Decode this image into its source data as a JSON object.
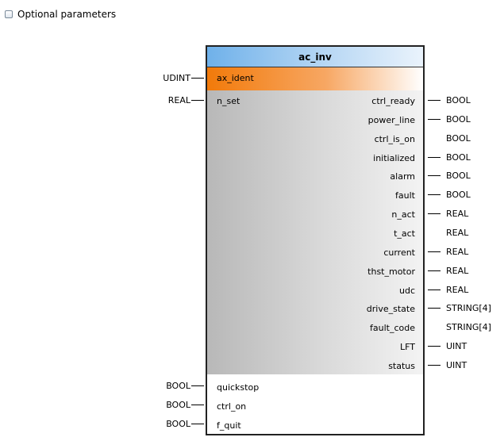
{
  "optional_label": "Optional parameters",
  "block": {
    "title": "ac_inv",
    "ax_ident": "ax_ident",
    "n_set": "n_set",
    "quickstop": "quickstop",
    "ctrl_on": "ctrl_on",
    "f_quit": "f_quit"
  },
  "types": {
    "ax_ident": "UDINT",
    "n_set": "REAL",
    "quickstop": "BOOL",
    "ctrl_on": "BOOL",
    "f_quit": "BOOL"
  },
  "outputs": [
    {
      "name": "ctrl_ready",
      "type": "BOOL"
    },
    {
      "name": "power_line",
      "type": "BOOL"
    },
    {
      "name": "ctrl_is_on",
      "type": "BOOL"
    },
    {
      "name": "initialized",
      "type": "BOOL"
    },
    {
      "name": "alarm",
      "type": "BOOL"
    },
    {
      "name": "fault",
      "type": "BOOL"
    },
    {
      "name": "n_act",
      "type": "REAL"
    },
    {
      "name": "t_act",
      "type": "REAL"
    },
    {
      "name": "current",
      "type": "REAL"
    },
    {
      "name": "thst_motor",
      "type": "REAL"
    },
    {
      "name": "udc",
      "type": "REAL"
    },
    {
      "name": "drive_state",
      "type": "STRING[4]"
    },
    {
      "name": "fault_code",
      "type": "STRING[4]"
    },
    {
      "name": "LFT",
      "type": "UINT"
    },
    {
      "name": "status",
      "type": "UINT"
    }
  ],
  "colors": {
    "title_bar": "#6fb1ea",
    "ax_ident_bar": "#f27a0a",
    "body_grey": "#b8b8b8"
  }
}
